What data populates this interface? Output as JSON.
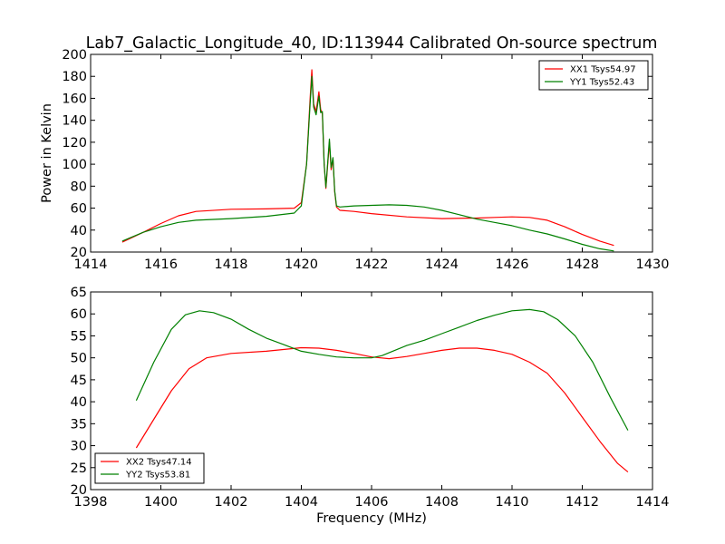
{
  "chart_data": [
    {
      "type": "line",
      "title": "Lab7_Galactic_Longitude_40, ID:113944 Calibrated On-source spectrum",
      "xlabel": "",
      "ylabel": "Power in Kelvin",
      "xlim": [
        1414,
        1430
      ],
      "ylim": [
        20,
        200
      ],
      "xticks": [
        "1414",
        "1416",
        "1418",
        "1420",
        "1422",
        "1424",
        "1426",
        "1428",
        "1430"
      ],
      "yticks": [
        "20",
        "40",
        "60",
        "80",
        "100",
        "120",
        "140",
        "160",
        "180",
        "200"
      ],
      "legend_position": "top-right",
      "grid": false,
      "series": [
        {
          "name": "XX1 Tsys54.97",
          "color": "#ff0000",
          "x": [
            1414.9,
            1415.5,
            1416,
            1416.5,
            1417,
            1418,
            1419,
            1419.8,
            1420.0,
            1420.15,
            1420.25,
            1420.3,
            1420.35,
            1420.42,
            1420.5,
            1420.55,
            1420.6,
            1420.65,
            1420.7,
            1420.8,
            1420.85,
            1420.9,
            1420.95,
            1421.0,
            1421.1,
            1421.5,
            1422,
            1423,
            1424,
            1425,
            1425.5,
            1426,
            1426.5,
            1427,
            1427.5,
            1428,
            1428.5,
            1428.9
          ],
          "y": [
            29,
            38,
            46,
            53,
            57,
            59,
            59.3,
            60,
            65,
            100,
            160,
            186,
            155,
            148,
            166,
            150,
            146,
            100,
            78,
            120,
            95,
            105,
            75,
            61,
            58,
            57,
            55,
            52,
            50.5,
            51,
            51.5,
            52,
            51.5,
            49,
            43,
            36,
            30,
            26
          ]
        },
        {
          "name": "YY1 Tsys52.43",
          "color": "#008000",
          "x": [
            1414.9,
            1415.5,
            1416,
            1416.5,
            1417,
            1418,
            1419,
            1419.8,
            1420.0,
            1420.15,
            1420.25,
            1420.3,
            1420.35,
            1420.42,
            1420.5,
            1420.55,
            1420.6,
            1420.65,
            1420.7,
            1420.8,
            1420.85,
            1420.9,
            1420.95,
            1421.0,
            1421.1,
            1421.5,
            1422,
            1422.5,
            1423,
            1423.5,
            1424,
            1424.5,
            1425,
            1425.5,
            1426,
            1426.5,
            1427,
            1427.5,
            1428,
            1428.5,
            1428.9
          ],
          "y": [
            30,
            38,
            43,
            47,
            49,
            50.5,
            52.5,
            55.5,
            62,
            100,
            155,
            180,
            152,
            145,
            162,
            147,
            148,
            100,
            79,
            123,
            97,
            106,
            76,
            62,
            61,
            62,
            62.5,
            63,
            62.5,
            61,
            58,
            54,
            50,
            47,
            44,
            40,
            36.5,
            32,
            27,
            23,
            21
          ]
        }
      ]
    },
    {
      "type": "line",
      "title": "",
      "xlabel": "Frequency (MHz)",
      "ylabel": "",
      "xlim": [
        1398,
        1414
      ],
      "ylim": [
        20,
        65
      ],
      "xticks": [
        "1398",
        "1400",
        "1402",
        "1404",
        "1406",
        "1408",
        "1410",
        "1412",
        "1414"
      ],
      "yticks": [
        "20",
        "25",
        "30",
        "35",
        "40",
        "45",
        "50",
        "55",
        "60",
        "65"
      ],
      "legend_position": "bottom-left",
      "grid": false,
      "series": [
        {
          "name": "XX2 Tsys47.14",
          "color": "#ff0000",
          "x": [
            1399.3,
            1399.8,
            1400.3,
            1400.8,
            1401.3,
            1402,
            1403,
            1404,
            1404.5,
            1405,
            1405.5,
            1406,
            1406.5,
            1407,
            1407.5,
            1408,
            1408.5,
            1409,
            1409.5,
            1410,
            1410.5,
            1411,
            1411.5,
            1412,
            1412.5,
            1413,
            1413.3
          ],
          "y": [
            29.5,
            36,
            42.5,
            47.5,
            50,
            51,
            51.5,
            52.3,
            52.2,
            51.7,
            51,
            50.2,
            49.8,
            50.3,
            51,
            51.7,
            52.2,
            52.2,
            51.7,
            50.8,
            49,
            46.5,
            42,
            36.5,
            31,
            26,
            24
          ]
        },
        {
          "name": "YY2 Tsys53.81",
          "color": "#008000",
          "x": [
            1399.3,
            1399.8,
            1400.3,
            1400.7,
            1401.1,
            1401.5,
            1402,
            1402.5,
            1403,
            1403.5,
            1404,
            1404.5,
            1405,
            1405.5,
            1406,
            1406.3,
            1406.6,
            1407,
            1407.5,
            1408,
            1408.5,
            1409,
            1409.5,
            1410,
            1410.5,
            1410.9,
            1411.3,
            1411.8,
            1412.3,
            1412.8,
            1413.3
          ],
          "y": [
            40.3,
            49,
            56.5,
            59.8,
            60.7,
            60.3,
            58.8,
            56.5,
            54.5,
            53,
            51.5,
            50.8,
            50.2,
            50,
            50,
            50.5,
            51.5,
            52.8,
            54,
            55.5,
            57,
            58.5,
            59.7,
            60.7,
            61,
            60.5,
            58.7,
            55,
            49,
            41,
            33.5
          ]
        }
      ]
    }
  ]
}
